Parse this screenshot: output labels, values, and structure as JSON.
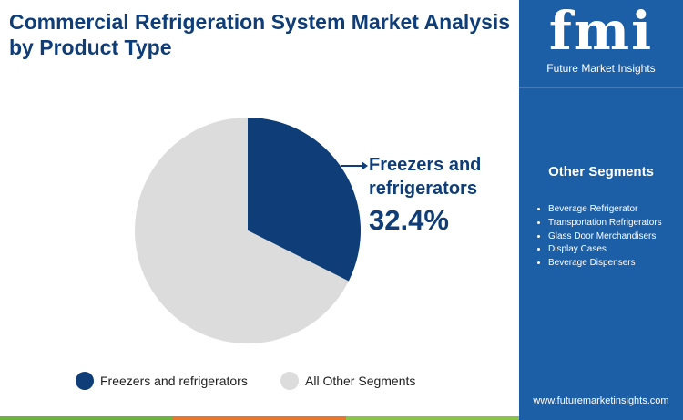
{
  "chart_data": {
    "type": "pie",
    "title": "Commercial Refrigeration System Market Analysis by Product Type",
    "categories": [
      "Freezers and refrigerators",
      "All Other Segments"
    ],
    "values": [
      32.4,
      67.6
    ],
    "value_labels": [
      "32.4%",
      null
    ],
    "colors": [
      "#0e3d78",
      "#dcdcdc"
    ]
  },
  "sidebar": {
    "brand": "fmi",
    "brand_name": "Future Market Insights",
    "heading": "Other Segments",
    "items": [
      "Beverage Refrigerator",
      "Transportation Refrigerators",
      "Glass Door Merchandisers",
      "Display Cases",
      "Beverage Dispensers"
    ],
    "website": "www.futuremarketinsights.com"
  }
}
